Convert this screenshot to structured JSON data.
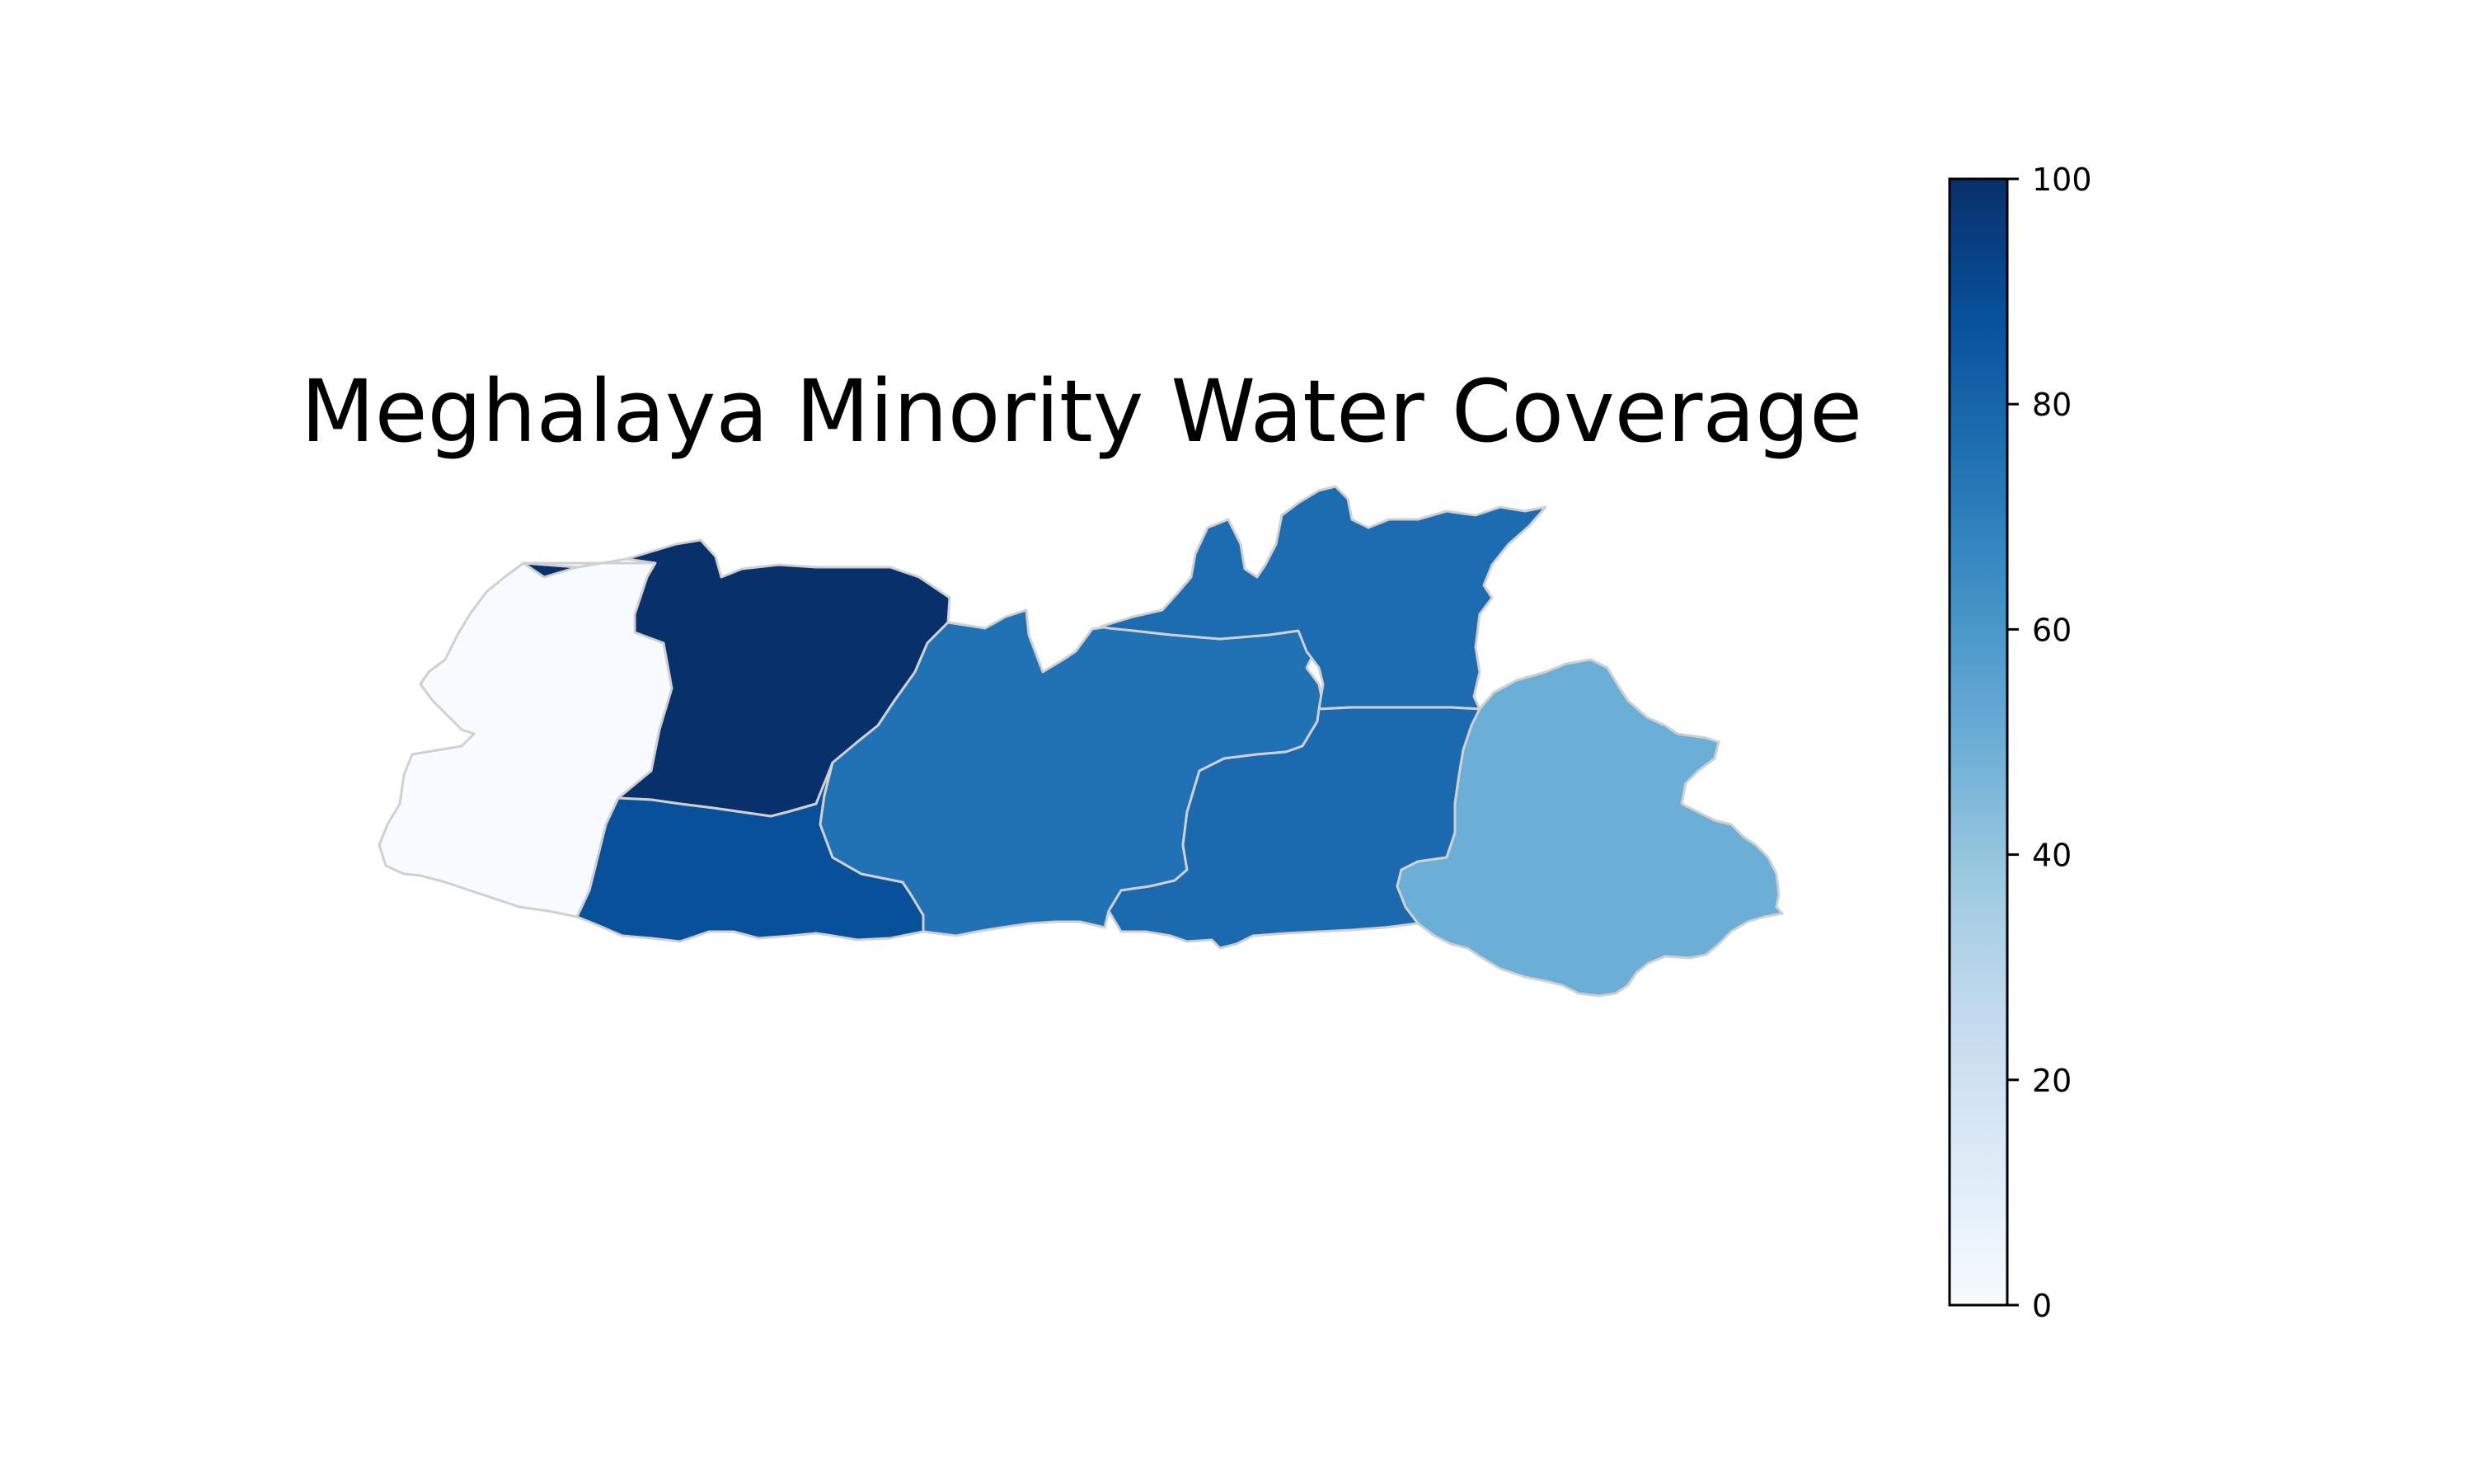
{
  "title": "Meghalaya Minority Water Coverage",
  "colormap": {
    "name": "Blues",
    "stops": [
      "#f7fbff",
      "#deebf7",
      "#c6dbef",
      "#9ecae1",
      "#6baed6",
      "#4292c6",
      "#2171b5",
      "#08519c",
      "#08306b"
    ]
  },
  "chart_data": {
    "type": "choropleth",
    "title": "Meghalaya Minority Water Coverage",
    "region": "Meghalaya",
    "colorbar": {
      "min": 0,
      "max": 100,
      "ticks": [
        "0",
        "20",
        "40",
        "60",
        "80",
        "100"
      ]
    },
    "districts": [
      {
        "id": "west-garo-hills",
        "value": 0
      },
      {
        "id": "north-garo-hills",
        "value": 100
      },
      {
        "id": "south-garo-hills",
        "value": 88
      },
      {
        "id": "west-khasi-hills",
        "value": 75
      },
      {
        "id": "ri-bhoi",
        "value": 77
      },
      {
        "id": "east-khasi-hills",
        "value": 78
      },
      {
        "id": "jaintia-hills",
        "value": 50
      }
    ]
  }
}
